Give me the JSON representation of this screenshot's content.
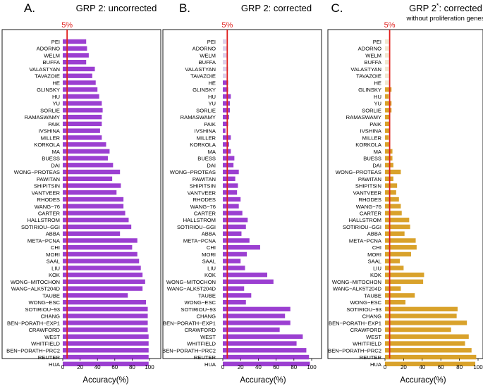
{
  "chart_data": [
    {
      "type": "bar",
      "panel_letter": "A.",
      "title": "GRP 2: uncorrected",
      "subtitle": "",
      "xlabel": "Accuracy(%)",
      "ylabel": "",
      "xlim": [
        0,
        100
      ],
      "xticks": [
        "0",
        "20",
        "40",
        "60",
        "80",
        "100"
      ],
      "reference_line": {
        "value": 5,
        "label": "5%",
        "color": "#e0201e"
      },
      "bar_color": "#9b3fd1",
      "faded_bar_color": "#9b3fd1",
      "categories": [
        "PEI",
        "ADORNO",
        "WELM",
        "BUFFA",
        "VALASTYAN",
        "TAVAZOIE",
        "HE",
        "GLINSKY",
        "HU",
        "YU",
        "SORLIE",
        "RAMASWAMY",
        "PAIK",
        "IVSHINA",
        "MILLER",
        "KORKOLA",
        "MA",
        "BUESS",
        "DAI",
        "WONG−PROTEAS",
        "PAWITAN",
        "SHIPITSIN",
        "VANTVEER",
        "RHODES",
        "WANG−76",
        "CARTER",
        "HALLSTROM",
        "SOTIRIOU−GGI",
        "ABBA",
        "META−PCNA",
        "CHI",
        "MORI",
        "SAAL",
        "LIU",
        "KOK",
        "WONG−MITOCHON",
        "WANG−ALK5T204D",
        "TAUBE",
        "WONG−ESC",
        "SOTIRIOU−93",
        "CHANG",
        "BEN−PORATH−EXP1",
        "CRAWFORD",
        "WEST",
        "WHITFIELD",
        "BEN−PORATH−PRC2",
        "REUTER",
        "HUA"
      ],
      "values": [
        27,
        28,
        30,
        27,
        37,
        34,
        38,
        40,
        42,
        45,
        46,
        45,
        45,
        43,
        45,
        50,
        54,
        52,
        58,
        66,
        57,
        67,
        62,
        70,
        70,
        72,
        76,
        79,
        66,
        86,
        80,
        86,
        88,
        90,
        92,
        95,
        92,
        75,
        96,
        98,
        98,
        98,
        98,
        99,
        99,
        99,
        99,
        99
      ],
      "faded": []
    },
    {
      "type": "bar",
      "panel_letter": "B.",
      "title": "GRP 2: corrected",
      "subtitle": "",
      "xlabel": "Accuracy(%)",
      "ylabel": "",
      "xlim": [
        0,
        100
      ],
      "xticks": [
        "0",
        "20",
        "40",
        "60",
        "80",
        "100"
      ],
      "reference_line": {
        "value": 5,
        "label": "5%",
        "color": "#e0201e"
      },
      "bar_color": "#9b3fd1",
      "faded_bar_color": "#ddd0ea",
      "categories": [
        "PEI",
        "ADORNO",
        "WELM",
        "BUFFA",
        "VALASTYAN",
        "TAVAZOIE",
        "HE",
        "GLINSKY",
        "HU",
        "YU",
        "SORLIE",
        "RAMASWAMY",
        "PAIK",
        "IVSHINA",
        "MILLER",
        "KORKOLA",
        "MA",
        "BUESS",
        "DAI",
        "WONG−PROTEAS",
        "PAWITAN",
        "SHIPITSIN",
        "VANTVEER",
        "RHODES",
        "WANG−76",
        "CARTER",
        "HALLSTROM",
        "SOTIRIOU−GGI",
        "ABBA",
        "META−PCNA",
        "CHI",
        "MORI",
        "SAAL",
        "LIU",
        "KOK",
        "WONG−MITOCHON",
        "WANG−ALK5T204D",
        "TAUBE",
        "WONG−ESC",
        "SOTIRIOU−93",
        "CHANG",
        "BEN−PORATH−EXP1",
        "CRAWFORD",
        "WEST",
        "WHITFIELD",
        "BEN−PORATH−PRC2",
        "REUTER",
        "HUA"
      ],
      "values": [
        4,
        5,
        5,
        4,
        6,
        4,
        6,
        6,
        9,
        8,
        8,
        7,
        6,
        3,
        9,
        7,
        9,
        13,
        12,
        18,
        14,
        17,
        16,
        20,
        18,
        22,
        28,
        26,
        21,
        30,
        42,
        27,
        20,
        25,
        50,
        57,
        24,
        32,
        26,
        76,
        70,
        76,
        64,
        90,
        83,
        94,
        97,
        98
      ],
      "faded": [
        0,
        1,
        2,
        3,
        4,
        5
      ]
    },
    {
      "type": "bar",
      "panel_letter": "C.",
      "title": "GRP 2",
      "title_superscript": "*",
      "title_rest": ": corrected",
      "subtitle": "without proliferation genes",
      "xlabel": "Accuracy(%)",
      "ylabel": "",
      "xlim": [
        0,
        100
      ],
      "xticks": [
        "0",
        "20",
        "40",
        "60",
        "80",
        "100"
      ],
      "reference_line": {
        "value": 5,
        "label": "5%",
        "color": "#e0201e"
      },
      "bar_color": "#d9a22b",
      "faded_bar_color": "#f1e6cf",
      "categories": [
        "PEI",
        "ADORNO",
        "WELM",
        "BUFFA",
        "VALASTYAN",
        "TAVAZOIE",
        "HE",
        "GLINSKY",
        "HU",
        "YU",
        "SORLIE",
        "RAMASWAMY",
        "PAIK",
        "IVSHINA",
        "MILLER",
        "KORKOLA",
        "MA",
        "BUESS",
        "DAI",
        "WONG−PROTEAS",
        "PAWITAN",
        "SHIPITSIN",
        "VANTVEER",
        "RHODES",
        "WANG−76",
        "CARTER",
        "HALLSTROM",
        "SOTIRIOU−GGI",
        "ABBA",
        "META−PCNA",
        "CHI",
        "MORI",
        "SAAL",
        "LIU",
        "KOK",
        "WONG−MITOCHON",
        "WANG−ALK5T204D",
        "TAUBE",
        "WONG−ESC",
        "SOTIRIOU−93",
        "CHANG",
        "BEN−PORATH−EXP1",
        "CRAWFORD",
        "WEST",
        "WHITFIELD",
        "BEN−PORATH−PRC2",
        "REUTER",
        "HUA"
      ],
      "values": [
        4,
        4,
        4,
        4,
        4,
        4,
        4,
        7,
        4,
        7,
        7,
        5,
        5,
        5,
        4,
        5,
        8,
        8,
        9,
        17,
        9,
        13,
        12,
        15,
        17,
        18,
        26,
        27,
        21,
        33,
        34,
        28,
        16,
        20,
        42,
        41,
        17,
        32,
        22,
        78,
        77,
        88,
        71,
        90,
        86,
        93,
        98,
        97
      ],
      "faded": [
        0,
        1,
        2,
        3,
        4,
        5,
        6
      ]
    }
  ]
}
